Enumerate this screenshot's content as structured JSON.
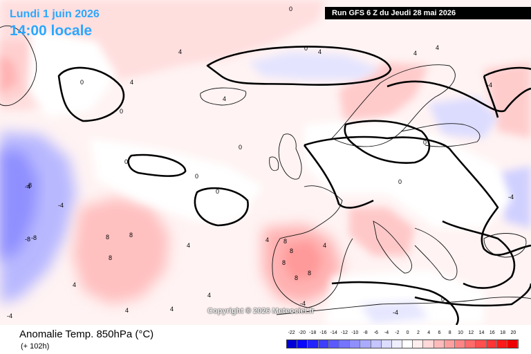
{
  "header": {
    "date": "Lundi 1 juin 2026",
    "time": "14:00 locale",
    "run": "Run GFS 6 Z du Jeudi 28 mai 2026"
  },
  "copyright": "Copyright © 2026 Meteociel.fr",
  "footer": {
    "title": "Anomalie Temp. 850hPa (°C)",
    "subtitle": "(+ 102h)"
  },
  "legend": {
    "labels": [
      "-22",
      "-20",
      "-18",
      "-16",
      "-14",
      "-12",
      "-10",
      "-8",
      "-6",
      "-4",
      "-2",
      "0",
      "2",
      "4",
      "6",
      "8",
      "10",
      "12",
      "14",
      "16",
      "18",
      "20"
    ],
    "colors": [
      "#0000d8",
      "#0808ff",
      "#2323ff",
      "#3e3eff",
      "#5959ff",
      "#7474ff",
      "#8f8fff",
      "#aaaaff",
      "#c5c5ff",
      "#dcdcff",
      "#eeeeff",
      "#ffffff",
      "#ffeeee",
      "#ffd8d8",
      "#ffbbbb",
      "#ffa0a0",
      "#ff8585",
      "#ff6a6a",
      "#ff4f4f",
      "#ff3434",
      "#ff1919",
      "#ee0000"
    ]
  },
  "map_contour_labels": [
    "0",
    "0",
    "0",
    "0",
    "0",
    "0",
    "0",
    "0",
    "4",
    "4",
    "4",
    "4",
    "4",
    "4",
    "4",
    "4",
    "4",
    "4",
    "4",
    "-4",
    "-4",
    "-4",
    "-4",
    "-4",
    "-4",
    "-4",
    "8",
    "8",
    "8",
    "8",
    "8",
    "8",
    "-8",
    "-8",
    "-8",
    "8",
    "8",
    "4",
    "4",
    "0",
    "0",
    "0"
  ]
}
